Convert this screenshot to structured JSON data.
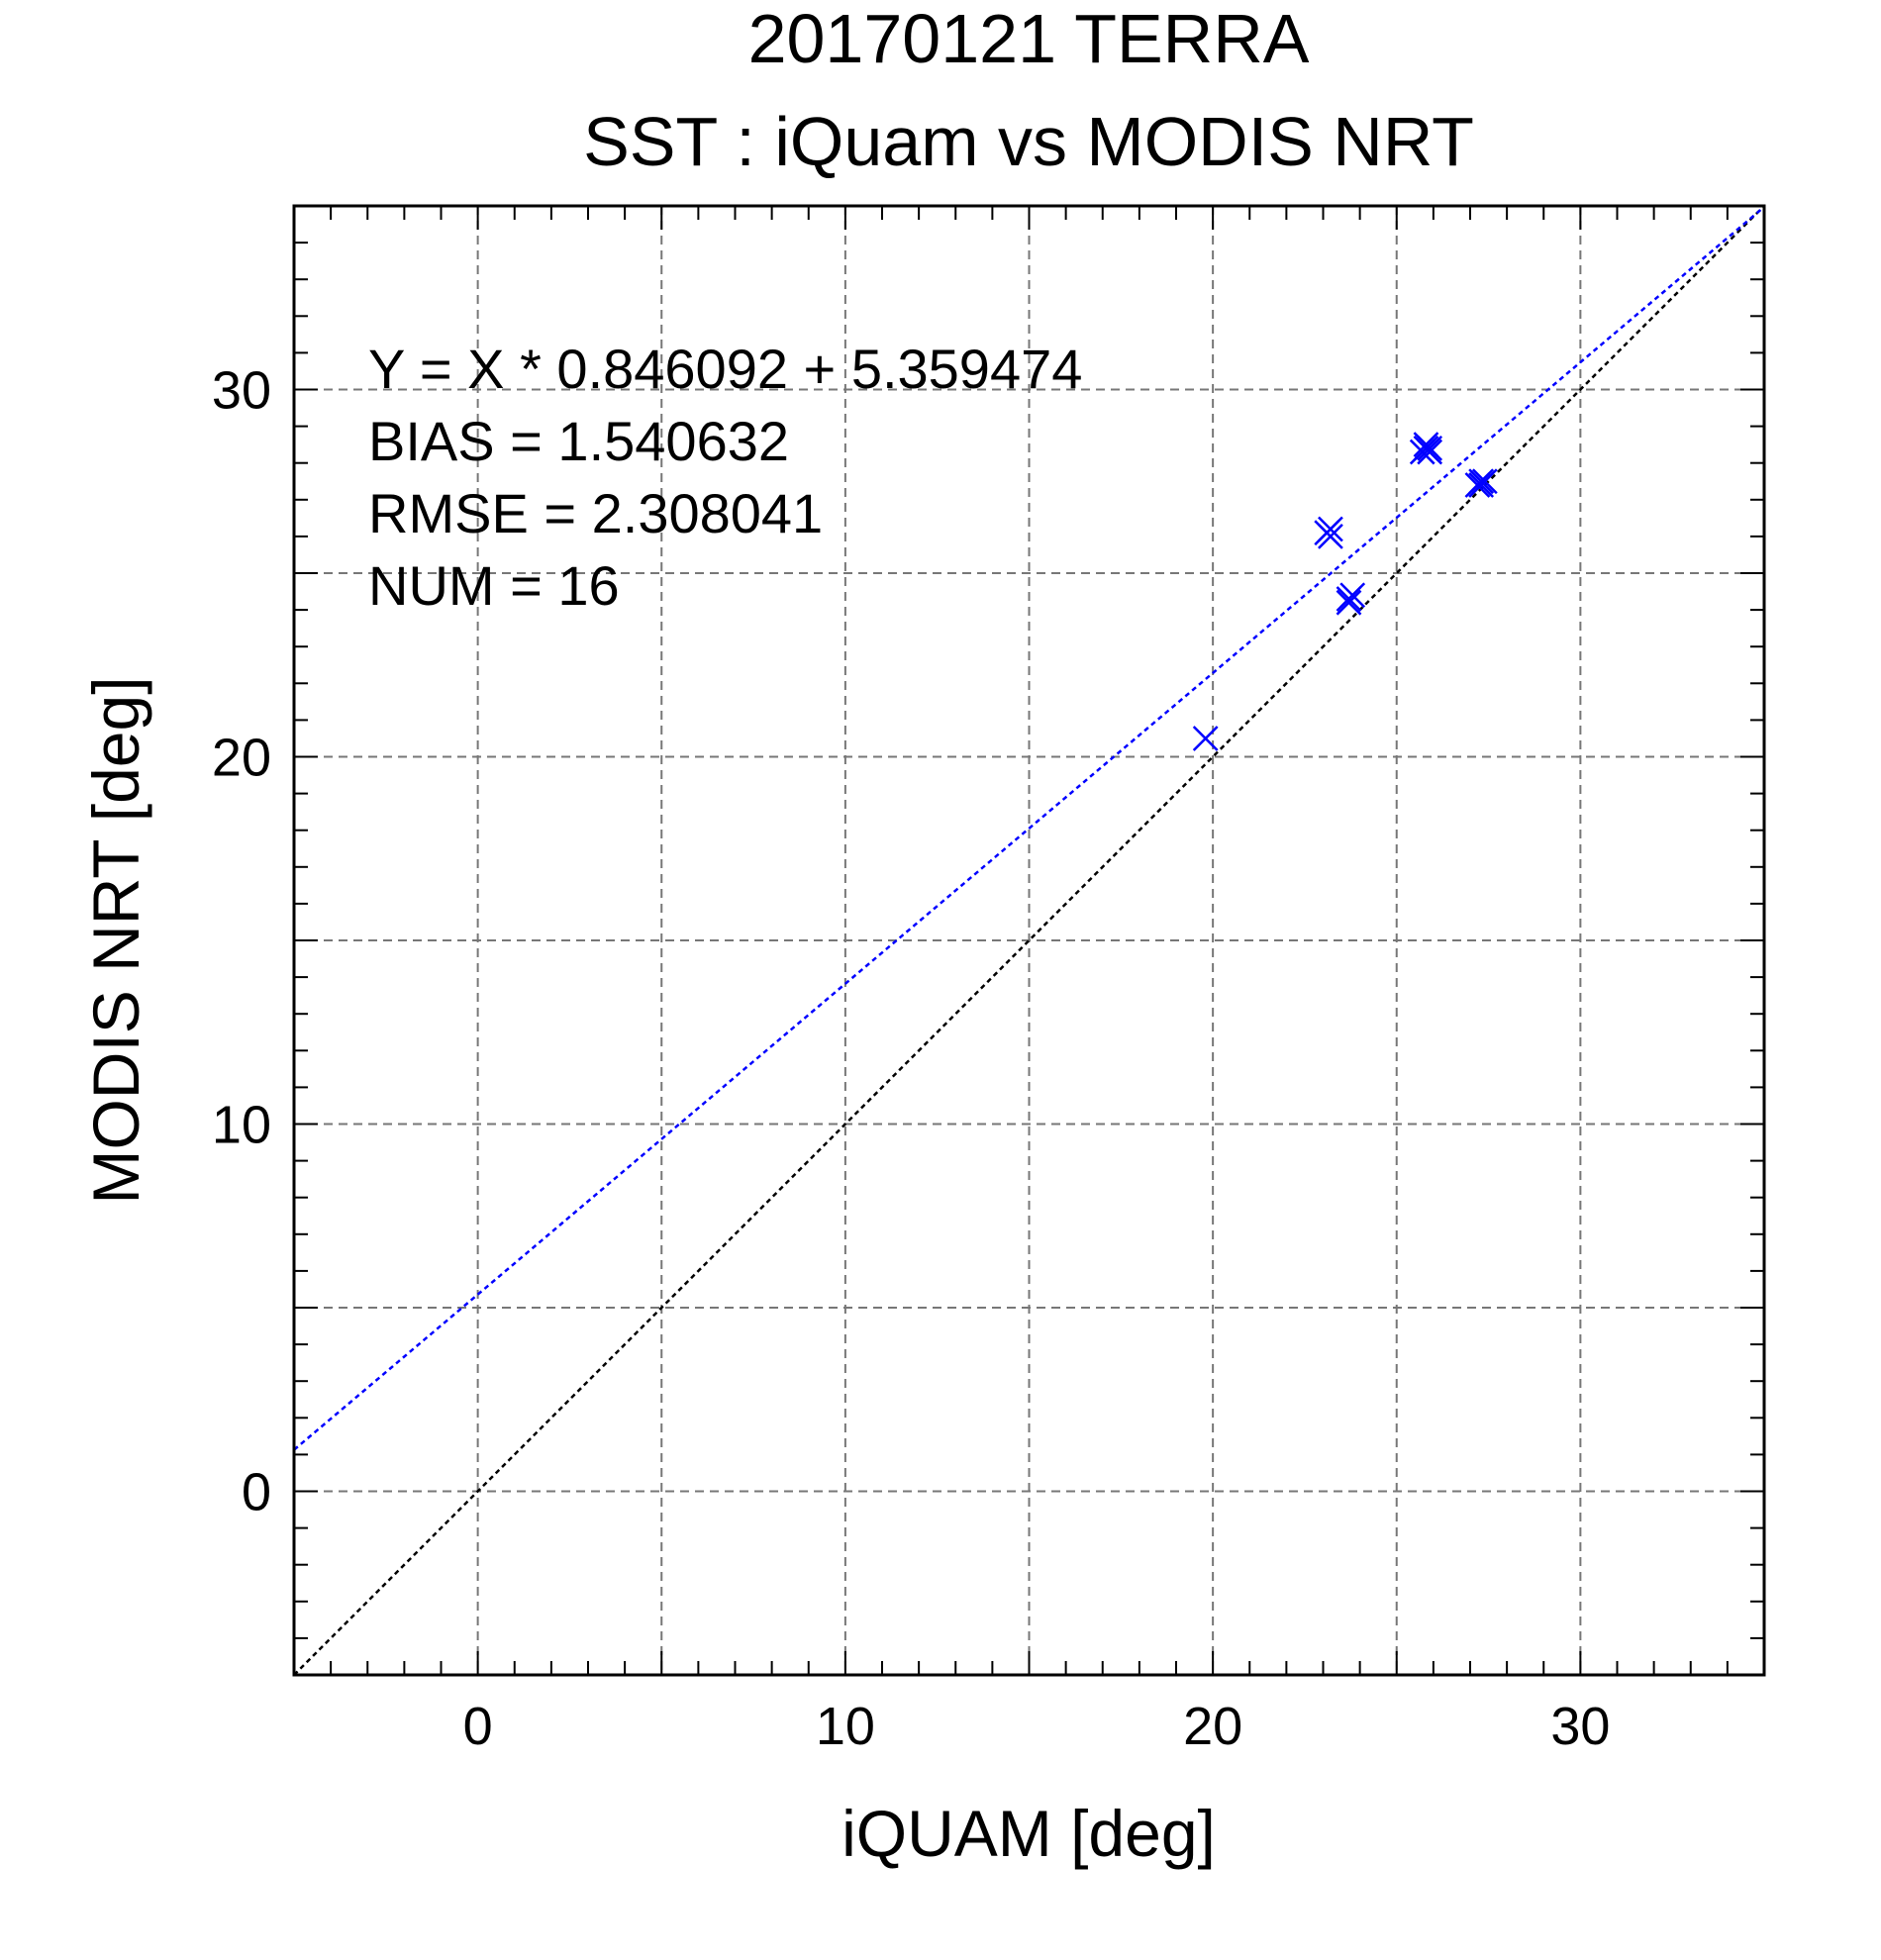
{
  "chart_data": {
    "type": "scatter",
    "title": "20170121 TERRA",
    "subtitle": "SST : iQuam vs MODIS NRT",
    "xlabel": "iQUAM [deg]",
    "ylabel": "MODIS NRT [deg]",
    "xlim": [
      -5,
      35
    ],
    "ylim": [
      -5,
      35
    ],
    "xticks": [
      0,
      10,
      20,
      30
    ],
    "yticks": [
      0,
      10,
      20,
      30
    ],
    "xtick_labels": [
      "0",
      "10",
      "20",
      "30"
    ],
    "ytick_labels": [
      "0",
      "10",
      "20",
      "30"
    ],
    "grid": true,
    "grid_step": 5,
    "annotations": [
      "Y = X * 0.846092 + 5.359474",
      "BIAS = 1.540632",
      "RMSE = 2.308041",
      "NUM = 16"
    ],
    "fit_line": {
      "slope": 0.846092,
      "intercept": 5.359474,
      "color": "#0000ff"
    },
    "identity_line": {
      "slope": 1,
      "intercept": 0,
      "color": "#000000"
    },
    "series": [
      {
        "marker": "x",
        "color": "#0000ff",
        "points": [
          [
            19.8,
            20.5
          ],
          [
            23.1,
            26.1
          ],
          [
            23.2,
            26.2
          ],
          [
            23.2,
            26.0
          ],
          [
            23.7,
            24.2
          ],
          [
            23.8,
            24.4
          ],
          [
            23.7,
            24.3
          ],
          [
            25.8,
            28.4
          ],
          [
            25.9,
            28.3
          ],
          [
            25.8,
            28.5
          ],
          [
            25.9,
            28.4
          ],
          [
            25.7,
            28.3
          ],
          [
            27.3,
            27.4
          ],
          [
            27.4,
            27.5
          ],
          [
            27.3,
            27.5
          ],
          [
            27.2,
            27.4
          ]
        ]
      }
    ]
  }
}
